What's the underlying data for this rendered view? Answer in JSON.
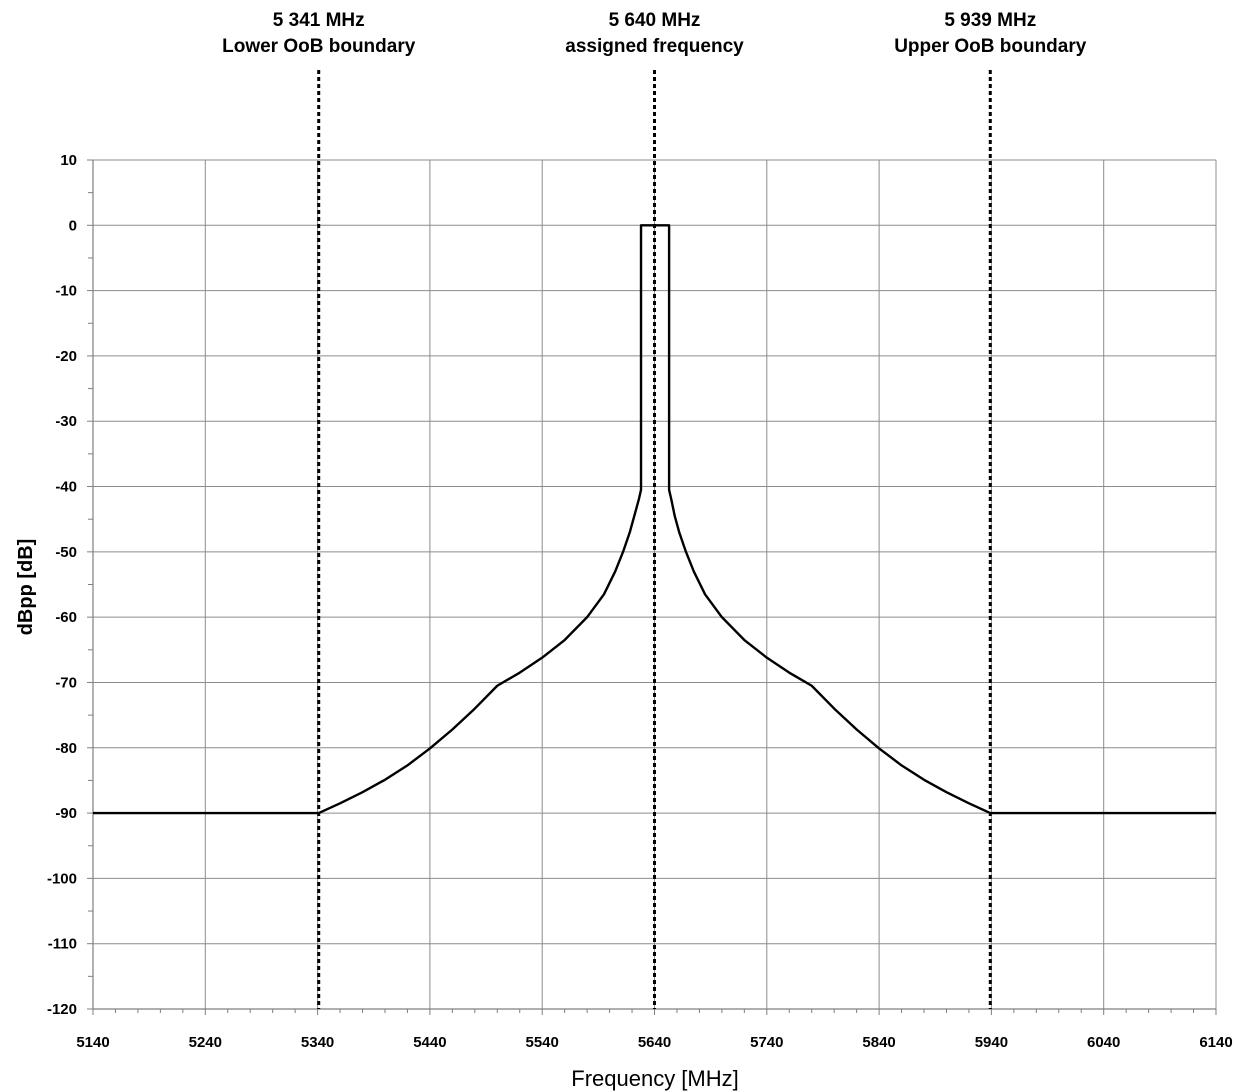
{
  "chart_data": {
    "type": "line",
    "title": "",
    "xlabel": "Frequency [MHz]",
    "ylabel": "dBpp [dB]",
    "xlim": [
      5140,
      6140
    ],
    "ylim": [
      -120,
      10
    ],
    "x_ticks": [
      5140,
      5240,
      5340,
      5440,
      5540,
      5640,
      5740,
      5840,
      5940,
      6040,
      6140
    ],
    "y_ticks": [
      10,
      0,
      -10,
      -20,
      -30,
      -40,
      -50,
      -60,
      -70,
      -80,
      -90,
      -100,
      -110,
      -120
    ],
    "grid": true,
    "legend": "none",
    "series": [
      {
        "color": "#000000",
        "x": [
          5140,
          5341,
          5360,
          5380,
          5400,
          5420,
          5440,
          5460,
          5480,
          5500,
          5510,
          5520,
          5540,
          5560,
          5580,
          5595,
          5605,
          5612,
          5618,
          5622,
          5626,
          5628,
          5628,
          5653,
          5653,
          5655,
          5658,
          5662,
          5668,
          5675,
          5685,
          5700,
          5720,
          5740,
          5760,
          5770,
          5780,
          5800,
          5820,
          5840,
          5860,
          5880,
          5900,
          5920,
          5939,
          6140
        ],
        "y": [
          -90,
          -90,
          -88.5,
          -86.8,
          -84.9,
          -82.7,
          -80.1,
          -77.2,
          -74,
          -70.5,
          -69.5,
          -68.5,
          -66.2,
          -63.5,
          -60,
          -56.5,
          -53,
          -50,
          -47,
          -44.5,
          -42,
          -40.5,
          0,
          0,
          -40.5,
          -42,
          -44.5,
          -47,
          -50,
          -53,
          -56.5,
          -60,
          -63.5,
          -66.2,
          -68.5,
          -69.5,
          -70.5,
          -74,
          -77.2,
          -80.1,
          -82.7,
          -84.9,
          -86.8,
          -88.5,
          -90,
          -90
        ]
      }
    ],
    "annotations": [
      {
        "x": 5341,
        "line1": "5 341 MHz",
        "line2": "Lower OoB boundary",
        "style": "dashed"
      },
      {
        "x": 5640,
        "line1": "5 640 MHz",
        "line2": "assigned frequency",
        "style": "dashed"
      },
      {
        "x": 5939,
        "line1": "5 939 MHz",
        "line2": "Upper OoB boundary",
        "style": "dashed"
      }
    ]
  }
}
